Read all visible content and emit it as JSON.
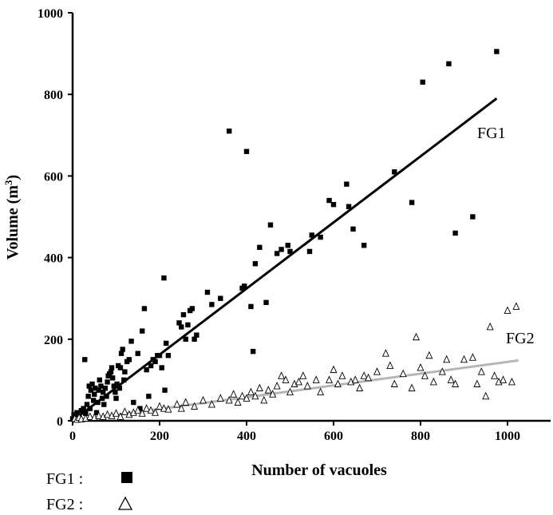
{
  "chart_data": {
    "type": "scatter",
    "xlabel": "Number of vacuoles",
    "ylabel_main": "Volume (m",
    "ylabel_sup": "3",
    "ylabel_close": ")",
    "xlim": [
      0,
      1100
    ],
    "ylim": [
      0,
      1000
    ],
    "xticks": [
      0,
      200,
      400,
      600,
      800,
      1000
    ],
    "yticks": [
      0,
      200,
      400,
      600,
      800,
      1000
    ],
    "grid": false,
    "legend_position": "bottom-left",
    "legend": [
      {
        "label": "FG1 :",
        "marker": "filled-square"
      },
      {
        "label": "FG2 :",
        "marker": "open-triangle"
      }
    ],
    "series": [
      {
        "name": "FG1",
        "marker": "filled-square",
        "color": "#000000",
        "trendline": {
          "x": [
            0,
            975
          ],
          "y": [
            0,
            790
          ],
          "color": "#000000"
        },
        "points": [
          [
            0,
            5
          ],
          [
            3,
            15
          ],
          [
            6,
            8
          ],
          [
            10,
            20
          ],
          [
            15,
            12
          ],
          [
            20,
            25
          ],
          [
            25,
            30
          ],
          [
            28,
            150
          ],
          [
            30,
            18
          ],
          [
            33,
            40
          ],
          [
            36,
            60
          ],
          [
            38,
            85
          ],
          [
            40,
            30
          ],
          [
            42,
            75
          ],
          [
            45,
            90
          ],
          [
            48,
            50
          ],
          [
            50,
            65
          ],
          [
            52,
            80
          ],
          [
            55,
            20
          ],
          [
            58,
            45
          ],
          [
            60,
            75
          ],
          [
            62,
            100
          ],
          [
            65,
            85
          ],
          [
            68,
            55
          ],
          [
            70,
            70
          ],
          [
            72,
            40
          ],
          [
            75,
            80
          ],
          [
            78,
            60
          ],
          [
            80,
            95
          ],
          [
            82,
            110
          ],
          [
            85,
            115
          ],
          [
            88,
            120
          ],
          [
            90,
            130
          ],
          [
            92,
            105
          ],
          [
            95,
            85
          ],
          [
            98,
            70
          ],
          [
            100,
            55
          ],
          [
            102,
            90
          ],
          [
            105,
            135
          ],
          [
            108,
            80
          ],
          [
            110,
            130
          ],
          [
            112,
            165
          ],
          [
            115,
            175
          ],
          [
            118,
            100
          ],
          [
            120,
            120
          ],
          [
            125,
            145
          ],
          [
            130,
            150
          ],
          [
            135,
            195
          ],
          [
            140,
            45
          ],
          [
            150,
            165
          ],
          [
            155,
            30
          ],
          [
            160,
            220
          ],
          [
            165,
            275
          ],
          [
            170,
            125
          ],
          [
            175,
            60
          ],
          [
            180,
            135
          ],
          [
            185,
            150
          ],
          [
            190,
            145
          ],
          [
            195,
            160
          ],
          [
            200,
            160
          ],
          [
            205,
            130
          ],
          [
            210,
            350
          ],
          [
            212,
            75
          ],
          [
            215,
            190
          ],
          [
            220,
            160
          ],
          [
            245,
            240
          ],
          [
            250,
            230
          ],
          [
            255,
            260
          ],
          [
            260,
            200
          ],
          [
            265,
            235
          ],
          [
            270,
            270
          ],
          [
            275,
            275
          ],
          [
            280,
            200
          ],
          [
            285,
            210
          ],
          [
            310,
            315
          ],
          [
            320,
            285
          ],
          [
            340,
            300
          ],
          [
            360,
            710
          ],
          [
            390,
            325
          ],
          [
            395,
            330
          ],
          [
            400,
            660
          ],
          [
            410,
            280
          ],
          [
            415,
            170
          ],
          [
            420,
            385
          ],
          [
            430,
            425
          ],
          [
            445,
            290
          ],
          [
            455,
            480
          ],
          [
            470,
            410
          ],
          [
            480,
            420
          ],
          [
            495,
            430
          ],
          [
            500,
            415
          ],
          [
            545,
            415
          ],
          [
            550,
            455
          ],
          [
            570,
            450
          ],
          [
            590,
            540
          ],
          [
            600,
            530
          ],
          [
            630,
            580
          ],
          [
            635,
            525
          ],
          [
            645,
            470
          ],
          [
            670,
            430
          ],
          [
            740,
            610
          ],
          [
            780,
            535
          ],
          [
            805,
            830
          ],
          [
            865,
            875
          ],
          [
            880,
            460
          ],
          [
            920,
            500
          ],
          [
            975,
            905
          ]
        ]
      },
      {
        "name": "FG2",
        "marker": "open-triangle",
        "color": "#000000",
        "trendline": {
          "x": [
            0,
            1025
          ],
          "y": [
            0,
            148
          ],
          "color": "#b5b5b5"
        },
        "points": [
          [
            5,
            5
          ],
          [
            10,
            3
          ],
          [
            15,
            8
          ],
          [
            20,
            4
          ],
          [
            30,
            6
          ],
          [
            40,
            10
          ],
          [
            50,
            8
          ],
          [
            60,
            12
          ],
          [
            70,
            10
          ],
          [
            80,
            15
          ],
          [
            90,
            12
          ],
          [
            100,
            18
          ],
          [
            110,
            10
          ],
          [
            120,
            22
          ],
          [
            130,
            15
          ],
          [
            140,
            20
          ],
          [
            150,
            25
          ],
          [
            160,
            18
          ],
          [
            170,
            30
          ],
          [
            180,
            25
          ],
          [
            190,
            20
          ],
          [
            200,
            35
          ],
          [
            210,
            30
          ],
          [
            220,
            28
          ],
          [
            240,
            40
          ],
          [
            250,
            30
          ],
          [
            260,
            45
          ],
          [
            280,
            35
          ],
          [
            300,
            50
          ],
          [
            320,
            40
          ],
          [
            340,
            55
          ],
          [
            360,
            50
          ],
          [
            370,
            65
          ],
          [
            380,
            45
          ],
          [
            390,
            60
          ],
          [
            400,
            55
          ],
          [
            410,
            70
          ],
          [
            420,
            60
          ],
          [
            430,
            80
          ],
          [
            440,
            50
          ],
          [
            450,
            75
          ],
          [
            460,
            65
          ],
          [
            470,
            85
          ],
          [
            480,
            110
          ],
          [
            490,
            100
          ],
          [
            500,
            70
          ],
          [
            510,
            90
          ],
          [
            520,
            95
          ],
          [
            530,
            110
          ],
          [
            540,
            85
          ],
          [
            560,
            100
          ],
          [
            570,
            70
          ],
          [
            590,
            100
          ],
          [
            600,
            125
          ],
          [
            610,
            90
          ],
          [
            620,
            110
          ],
          [
            640,
            95
          ],
          [
            650,
            100
          ],
          [
            660,
            80
          ],
          [
            670,
            110
          ],
          [
            680,
            105
          ],
          [
            700,
            120
          ],
          [
            720,
            165
          ],
          [
            730,
            135
          ],
          [
            740,
            90
          ],
          [
            760,
            115
          ],
          [
            780,
            80
          ],
          [
            790,
            205
          ],
          [
            800,
            130
          ],
          [
            810,
            110
          ],
          [
            820,
            160
          ],
          [
            830,
            95
          ],
          [
            850,
            120
          ],
          [
            860,
            150
          ],
          [
            870,
            100
          ],
          [
            880,
            90
          ],
          [
            900,
            150
          ],
          [
            920,
            155
          ],
          [
            930,
            90
          ],
          [
            940,
            120
          ],
          [
            950,
            60
          ],
          [
            960,
            230
          ],
          [
            970,
            110
          ],
          [
            980,
            95
          ],
          [
            990,
            100
          ],
          [
            1000,
            270
          ],
          [
            1010,
            95
          ],
          [
            1020,
            280
          ]
        ]
      }
    ]
  }
}
